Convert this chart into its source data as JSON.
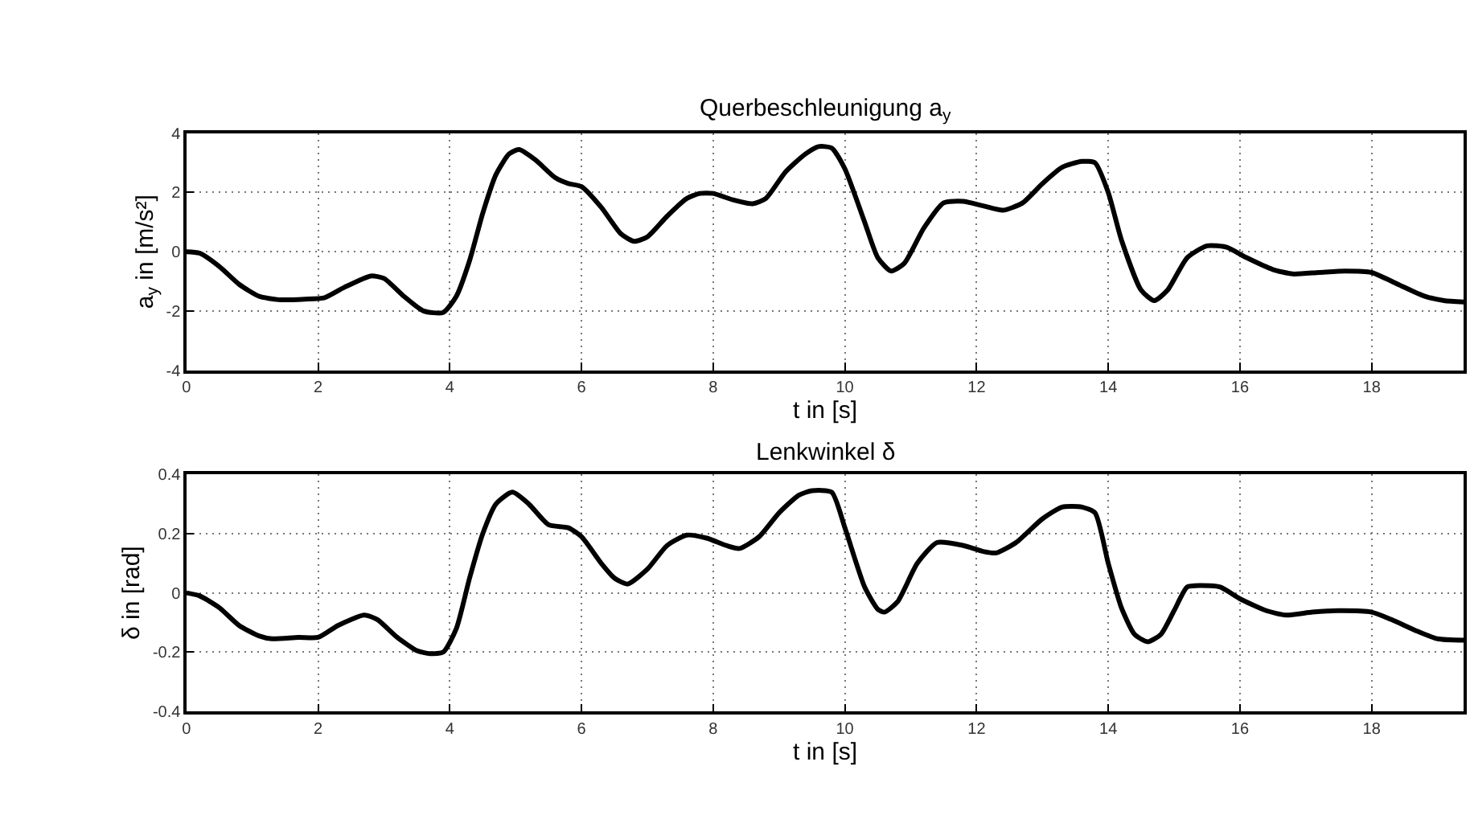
{
  "chart_data": [
    {
      "type": "line",
      "title": "Querbeschleunigung a$_{y}$",
      "xlabel": "t in [s]",
      "ylabel": "a$_{y}$ in [m/s²]",
      "xlim": [
        0,
        19.4
      ],
      "xticks": [
        0,
        2,
        4,
        6,
        8,
        10,
        12,
        14,
        16,
        18
      ],
      "ylim": [
        -4,
        4
      ],
      "yticks": [
        -4,
        -2,
        0,
        2,
        4
      ],
      "grid": true,
      "marker": "none",
      "line_style": "solid",
      "series": [
        {
          "color": "#000000",
          "x": [
            0,
            0.2,
            0.5,
            0.8,
            1.1,
            1.4,
            1.8,
            2.1,
            2.4,
            2.8,
            3.0,
            3.3,
            3.6,
            3.9,
            4.1,
            4.3,
            4.5,
            4.7,
            4.9,
            5.05,
            5.3,
            5.6,
            5.8,
            6.0,
            6.3,
            6.6,
            6.8,
            7.0,
            7.3,
            7.6,
            7.8,
            8.0,
            8.3,
            8.6,
            8.8,
            9.1,
            9.4,
            9.6,
            9.8,
            10.0,
            10.3,
            10.5,
            10.7,
            10.9,
            11.2,
            11.5,
            11.8,
            12.1,
            12.4,
            12.7,
            13.0,
            13.3,
            13.6,
            13.8,
            14.0,
            14.2,
            14.5,
            14.7,
            14.9,
            15.2,
            15.5,
            15.8,
            16.1,
            16.5,
            16.8,
            17.2,
            17.6,
            18.0,
            18.4,
            18.8,
            19.1,
            19.4
          ],
          "values": [
            0,
            -0.05,
            -0.5,
            -1.1,
            -1.5,
            -1.62,
            -1.6,
            -1.55,
            -1.2,
            -0.82,
            -0.9,
            -1.5,
            -2.0,
            -2.05,
            -1.5,
            -0.3,
            1.3,
            2.6,
            3.3,
            3.45,
            3.1,
            2.5,
            2.3,
            2.2,
            1.5,
            0.6,
            0.35,
            0.5,
            1.2,
            1.8,
            1.97,
            1.97,
            1.75,
            1.62,
            1.8,
            2.7,
            3.3,
            3.55,
            3.5,
            2.8,
            1.0,
            -0.2,
            -0.65,
            -0.4,
            0.8,
            1.65,
            1.7,
            1.55,
            1.4,
            1.65,
            2.3,
            2.85,
            3.05,
            3.0,
            2.0,
            0.4,
            -1.3,
            -1.65,
            -1.3,
            -0.2,
            0.2,
            0.15,
            -0.2,
            -0.6,
            -0.75,
            -0.7,
            -0.65,
            -0.7,
            -1.1,
            -1.5,
            -1.65,
            -1.7
          ]
        }
      ]
    },
    {
      "type": "line",
      "title": "Lenkwinkel δ",
      "xlabel": "t in [s]",
      "ylabel": "δ in [rad]",
      "xlim": [
        0,
        19.4
      ],
      "xticks": [
        0,
        2,
        4,
        6,
        8,
        10,
        12,
        14,
        16,
        18
      ],
      "ylim": [
        -0.4,
        0.4
      ],
      "yticks": [
        -0.4,
        -0.2,
        0,
        0.2,
        0.4
      ],
      "grid": true,
      "marker": "none",
      "line_style": "solid",
      "series": [
        {
          "color": "#000000",
          "x": [
            0,
            0.2,
            0.5,
            0.8,
            1.1,
            1.3,
            1.7,
            2.0,
            2.3,
            2.7,
            2.9,
            3.2,
            3.5,
            3.7,
            3.9,
            4.1,
            4.3,
            4.5,
            4.7,
            4.95,
            5.2,
            5.5,
            5.8,
            6.0,
            6.3,
            6.5,
            6.7,
            7.0,
            7.3,
            7.6,
            7.9,
            8.2,
            8.4,
            8.7,
            9.0,
            9.3,
            9.5,
            9.8,
            10.0,
            10.3,
            10.5,
            10.6,
            10.8,
            11.1,
            11.4,
            11.8,
            12.1,
            12.3,
            12.6,
            13.0,
            13.3,
            13.6,
            13.8,
            14.0,
            14.2,
            14.4,
            14.6,
            14.8,
            15.0,
            15.2,
            15.4,
            15.7,
            16.0,
            16.4,
            16.7,
            17.1,
            17.5,
            18.0,
            18.3,
            18.7,
            19.0,
            19.4
          ],
          "values": [
            0,
            -0.01,
            -0.05,
            -0.11,
            -0.145,
            -0.155,
            -0.15,
            -0.15,
            -0.11,
            -0.075,
            -0.09,
            -0.15,
            -0.195,
            -0.205,
            -0.2,
            -0.12,
            0.05,
            0.2,
            0.3,
            0.34,
            0.3,
            0.23,
            0.22,
            0.19,
            0.1,
            0.05,
            0.03,
            0.08,
            0.16,
            0.195,
            0.185,
            0.16,
            0.15,
            0.19,
            0.27,
            0.33,
            0.345,
            0.34,
            0.22,
            0.02,
            -0.055,
            -0.065,
            -0.03,
            0.1,
            0.17,
            0.16,
            0.14,
            0.135,
            0.17,
            0.25,
            0.29,
            0.29,
            0.27,
            0.1,
            -0.05,
            -0.14,
            -0.165,
            -0.14,
            -0.06,
            0.02,
            0.025,
            0.02,
            -0.02,
            -0.06,
            -0.075,
            -0.065,
            -0.06,
            -0.065,
            -0.09,
            -0.13,
            -0.155,
            -0.16
          ]
        }
      ]
    }
  ]
}
